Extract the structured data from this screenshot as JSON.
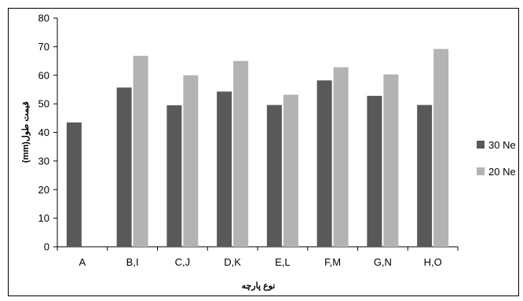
{
  "chart_data": {
    "type": "bar",
    "title": "",
    "xlabel": "نوع پارچه",
    "ylabel": "(mm)قیمت طول",
    "ylim": [
      0,
      80
    ],
    "yticks": [
      "0",
      "10",
      "20",
      "30",
      "40",
      "50",
      "60",
      "70",
      "80"
    ],
    "categories": [
      "A",
      "B,I",
      "C,J",
      "D,K",
      "E,L",
      "F,M",
      "G,N",
      "H,O"
    ],
    "series": [
      {
        "name": "30 Ne",
        "color": "#595959",
        "values": [
          43.5,
          55.7,
          49.5,
          54.3,
          49.6,
          58.2,
          52.8,
          49.6
        ]
      },
      {
        "name": "20 Ne",
        "color": "#b3b3b3",
        "values": [
          null,
          66.8,
          60.0,
          65.0,
          53.2,
          62.8,
          60.3,
          69.2
        ]
      }
    ],
    "grid": false,
    "legend_position": "right"
  }
}
